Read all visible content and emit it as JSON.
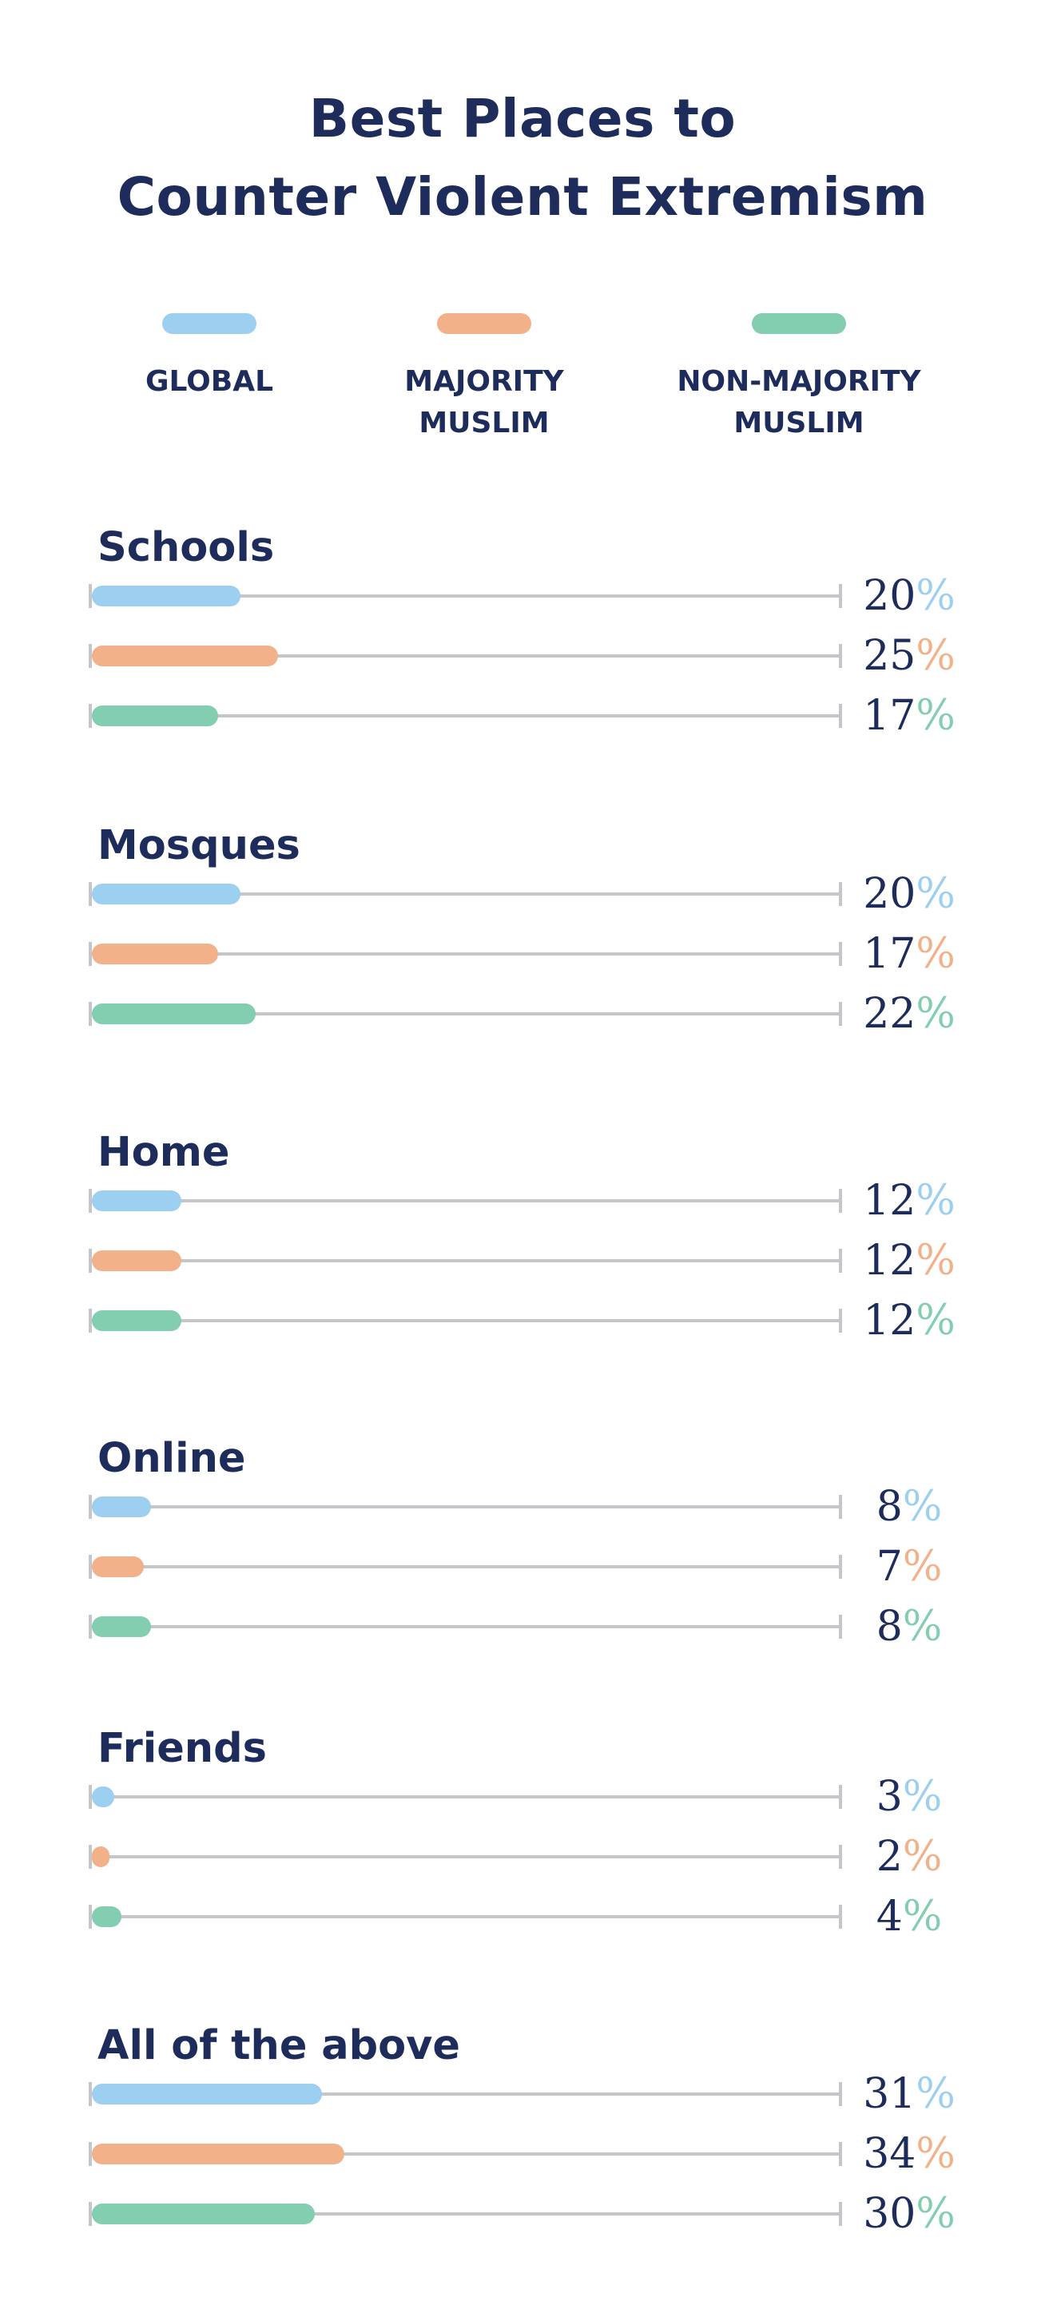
{
  "title": [
    "Best Places to",
    "Counter Violent Extremism"
  ],
  "colors": {
    "global": "#9ccff0",
    "majority": "#f2b189",
    "non_majority": "#83cdb0",
    "text": "#1d2c5b",
    "track": "#c4c6c9"
  },
  "legend": [
    {
      "key": "global",
      "label": "GLOBAL"
    },
    {
      "key": "majority",
      "label": "MAJORITY\nMUSLIM"
    },
    {
      "key": "non_majority",
      "label": "NON-MAJORITY\nMUSLIM"
    }
  ],
  "chart_data": {
    "type": "bar",
    "orientation": "horizontal",
    "title": "Best Places to Counter Violent Extremism",
    "categories": [
      "Schools",
      "Mosques",
      "Home",
      "Online",
      "Friends",
      "All of the above"
    ],
    "series": [
      {
        "name": "GLOBAL",
        "key": "global",
        "values": [
          20,
          20,
          12,
          8,
          3,
          31
        ]
      },
      {
        "name": "MAJORITY MUSLIM",
        "key": "majority",
        "values": [
          25,
          17,
          12,
          7,
          2,
          34
        ]
      },
      {
        "name": "NON-MAJORITY MUSLIM",
        "key": "non_majority",
        "values": [
          17,
          22,
          12,
          8,
          4,
          30
        ]
      }
    ],
    "unit": "%",
    "xlim": [
      0,
      100
    ],
    "data_labels": true,
    "grid": false,
    "legend_position": "top"
  }
}
